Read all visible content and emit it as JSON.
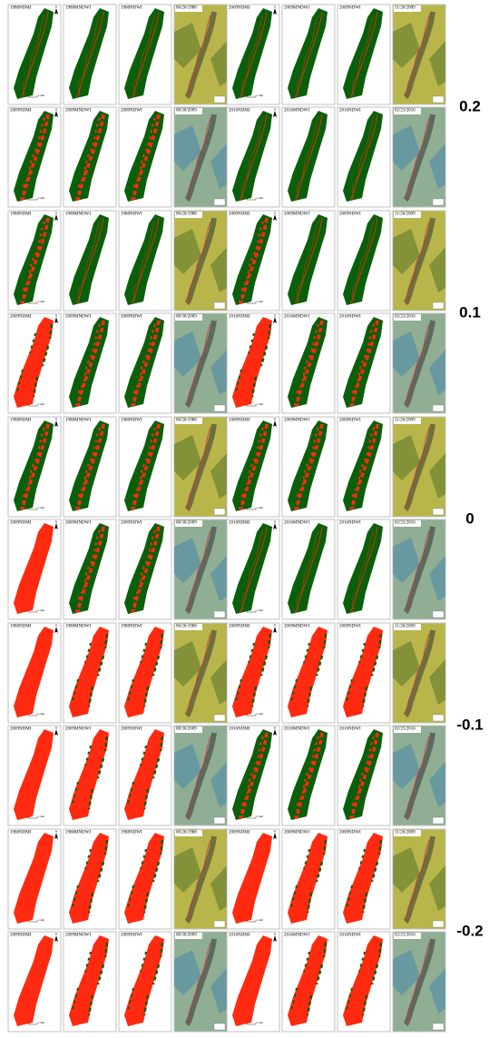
{
  "groups": [
    {
      "threshold": "0.2",
      "rows": [
        {
          "panels": [
            "1988NDMI",
            "1988MNDWI",
            "1988NDWI",
            "06/26/1988",
            "2009NDMI",
            "2009MNDWI",
            "2009NDWI",
            "11/26/2009"
          ]
        },
        {
          "panels": [
            "2009NDMI",
            "2009MNDWI",
            "2009NDWI",
            "08/30/2009",
            "2016NDMI",
            "2016MNDWI",
            "2016NDWI",
            "02/23/2016"
          ]
        }
      ]
    },
    {
      "threshold": "0.1",
      "rows": [
        {
          "panels": [
            "1988NDMI",
            "1988MNDWI",
            "1988NDWI",
            "06/26/1988",
            "2009NDMI",
            "2009MNDWI",
            "2009NDWI",
            "11/26/2009"
          ]
        },
        {
          "panels": [
            "2009NDMI",
            "2009MNDWI",
            "2009NDWI",
            "08/30/2009",
            "2016NDMI",
            "2016MNDWI",
            "2016NDWI",
            "02/23/2016"
          ]
        }
      ]
    },
    {
      "threshold": "0",
      "rows": [
        {
          "panels": [
            "1988NDMI",
            "1988MNDWI",
            "1988NDWI",
            "06/26/1988",
            "2009NDMI",
            "2009MNDWI",
            "2009NDWI",
            "11/26/2009"
          ]
        },
        {
          "panels": [
            "2009NDMI",
            "2009MNDWI",
            "2009NDWI",
            "08/30/2009",
            "2016NDMI",
            "2016MNDWI",
            "2016NDWI",
            "02/23/2016"
          ]
        }
      ]
    },
    {
      "threshold": "-0.1",
      "rows": [
        {
          "panels": [
            "1988NDMI",
            "1988MNDWI",
            "1988NDWI",
            "06/26/1988",
            "2009NDMI",
            "2009MNDWI",
            "2009NDWI",
            "11/26/2009"
          ]
        },
        {
          "panels": [
            "2009NDMI",
            "2009MNDWI",
            "2009NDWI",
            "08/30/2009",
            "2016NDMI",
            "2016MNDWI",
            "2016NDWI",
            "02/23/2016"
          ]
        }
      ]
    },
    {
      "threshold": "-0.2",
      "rows": [
        {
          "panels": [
            "1988NDMI",
            "1988MNDWI",
            "1988NDWI",
            "06/26/1988",
            "2009NDMI",
            "2009MNDWI",
            "2009NDWI",
            "11/26/2009"
          ]
        },
        {
          "panels": [
            "2009NDMI",
            "2009MNDWI",
            "2009NDWI",
            "08/30/2009",
            "2016NDMI",
            "2016MNDWI",
            "2016NDWI",
            "02/23/2016"
          ]
        }
      ]
    }
  ],
  "scale_label": "1 km",
  "north": "N"
}
